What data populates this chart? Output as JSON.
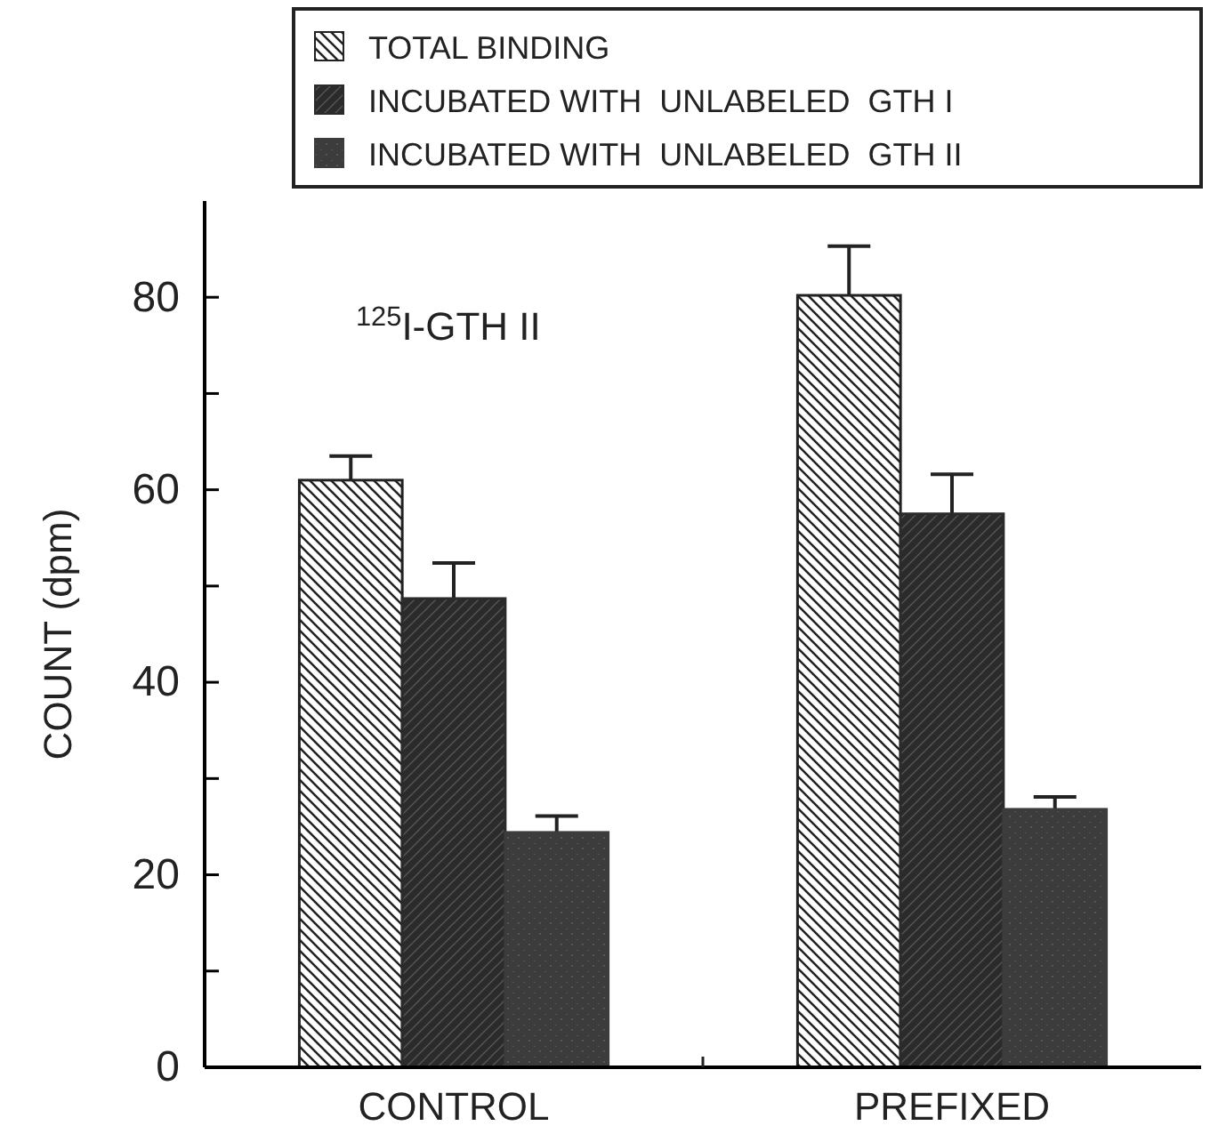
{
  "chart_data": {
    "type": "bar",
    "ylabel": "COUNT  (dpm)",
    "categories": [
      "CONTROL",
      "PREFIXED"
    ],
    "series": [
      {
        "name": "TOTAL BINDING",
        "color": "#222222",
        "values": [
          61.0,
          80.2
        ],
        "errors": [
          [
            61.0,
            63.5
          ],
          [
            80.2,
            85.3
          ]
        ]
      },
      {
        "name": "INCUBATED WITH  UNLABELED  GTH I",
        "color": "#2b2b2b",
        "values": [
          48.7,
          57.5
        ],
        "errors": [
          [
            48.7,
            52.4
          ],
          [
            57.5,
            61.6
          ]
        ]
      },
      {
        "name": "INCUBATED WITH  UNLABELED  GTH II",
        "color": "#3c3c3c",
        "values": [
          24.4,
          26.8
        ],
        "errors": [
          [
            24.4,
            26.1
          ],
          [
            26.8,
            28.1
          ]
        ]
      }
    ],
    "ylim": [
      0,
      90
    ],
    "yticks": [
      0,
      {
        "value": 10,
        "label": null
      },
      20,
      {
        "value": 30,
        "label": null
      },
      40,
      {
        "value": 50,
        "label": null
      },
      60,
      {
        "value": 70,
        "label": null
      },
      80
    ],
    "annotations": [
      "$^{125}$I-GTH II"
    ],
    "legend": "top",
    "grid": false
  }
}
